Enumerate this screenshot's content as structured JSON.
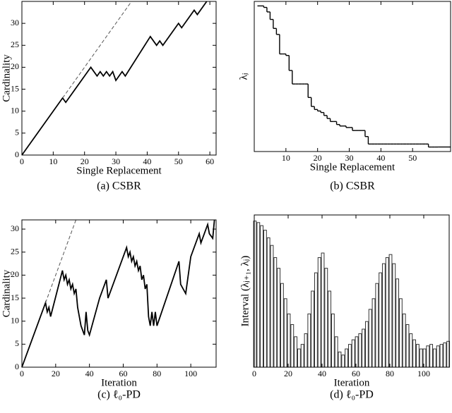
{
  "chart_data": [
    {
      "type": "line",
      "caption": "(a) CSBR",
      "xlabel": "Single Replacement",
      "ylabel": "Cardinality",
      "xlim": [
        0,
        62
      ],
      "xticks": [
        0,
        10,
        20,
        30,
        40,
        50,
        60
      ],
      "ylim": [
        0,
        35
      ],
      "yticks": [
        0,
        5,
        10,
        15,
        20,
        25,
        30
      ],
      "series": [
        {
          "color": "#000000",
          "dash": false,
          "x": [
            0,
            13,
            14,
            22,
            24,
            25,
            26,
            27,
            28,
            29,
            30,
            32,
            33,
            41,
            43,
            44,
            45,
            50,
            51,
            55,
            56,
            59
          ],
          "values": [
            0,
            13,
            12,
            20,
            18,
            19,
            18,
            19,
            18,
            19,
            17,
            19,
            18,
            27,
            25,
            26,
            25,
            30,
            29,
            33,
            32,
            35
          ]
        },
        {
          "color": "#555555",
          "dash": true,
          "x": [
            13,
            35
          ],
          "values": [
            13,
            35
          ]
        }
      ]
    },
    {
      "type": "step",
      "caption": "(b) CSBR",
      "xlabel": "Single Replacement",
      "ylabel": "λⱼ",
      "xlim": [
        0,
        62
      ],
      "xticks": [
        10,
        20,
        30,
        40,
        50
      ],
      "ylim": [
        0,
        100
      ],
      "color": "#000000",
      "x": [
        1,
        2,
        3,
        4,
        5,
        6,
        7,
        8,
        9,
        10,
        11,
        12,
        13,
        14,
        15,
        16,
        17,
        18,
        19,
        20,
        21,
        22,
        23,
        24,
        25,
        26,
        27,
        28,
        29,
        30,
        31,
        32,
        33,
        34,
        35,
        36,
        37,
        38,
        39,
        40,
        41,
        42,
        43,
        44,
        45,
        46,
        47,
        48,
        49,
        50,
        51,
        52,
        53,
        54,
        55,
        56,
        57,
        58
      ],
      "values": [
        97,
        97,
        96,
        93,
        88,
        82,
        78,
        65,
        65,
        64,
        54,
        45,
        45,
        45,
        45,
        45,
        36,
        30,
        28,
        27,
        26,
        24,
        22,
        20,
        20,
        18,
        17,
        17,
        16,
        16,
        14,
        14,
        14,
        14,
        10,
        5,
        5,
        5,
        5,
        5,
        5,
        5,
        5,
        5,
        5,
        5,
        5,
        5,
        5,
        5,
        5,
        5,
        5,
        5,
        3,
        3,
        3,
        3
      ]
    },
    {
      "type": "line",
      "caption": "(c) ℓ₀-PD",
      "xlabel": "Iteration",
      "ylabel": "Cardinality",
      "xlim": [
        0,
        115
      ],
      "xticks": [
        0,
        20,
        40,
        60,
        80,
        100
      ],
      "ylim": [
        0,
        32
      ],
      "yticks": [
        0,
        5,
        10,
        15,
        20,
        25,
        30
      ],
      "series": [
        {
          "color": "#000000",
          "dash": false,
          "x": [
            0,
            14,
            15,
            16,
            17,
            24,
            25,
            26,
            27,
            28,
            29,
            30,
            31,
            32,
            33,
            35,
            37,
            38,
            39,
            40,
            46,
            50,
            51,
            62,
            63,
            64,
            65,
            66,
            67,
            68,
            69,
            70,
            71,
            72,
            73,
            74,
            75,
            76,
            77,
            78,
            79,
            80,
            93,
            94,
            97,
            100,
            105,
            106,
            110,
            111,
            113,
            114
          ],
          "values": [
            0,
            14,
            12,
            13,
            11,
            21,
            19,
            20,
            18,
            19,
            17,
            18,
            16,
            17,
            13,
            9,
            7,
            12,
            8,
            7,
            15,
            19,
            15,
            26,
            24,
            25,
            23,
            24,
            22,
            23,
            21,
            22,
            19,
            20,
            17,
            18,
            11,
            9,
            12,
            9,
            12,
            9,
            23,
            18,
            16,
            24,
            29,
            27,
            31,
            29,
            28,
            32
          ]
        },
        {
          "color": "#555555",
          "dash": true,
          "x": [
            14,
            32
          ],
          "values": [
            14,
            32
          ]
        }
      ]
    },
    {
      "type": "bar",
      "caption": "(d) ℓ₀-PD",
      "xlabel": "Iteration",
      "ylabel": "Interval (λⱼ₊₁, λⱼ)",
      "xlim": [
        0,
        115
      ],
      "xticks": [
        0,
        20,
        40,
        60,
        80,
        100
      ],
      "ylim": [
        0,
        100
      ],
      "color": "#333333",
      "x": [
        0,
        2,
        4,
        6,
        8,
        10,
        12,
        14,
        16,
        18,
        20,
        22,
        24,
        26,
        28,
        30,
        32,
        34,
        36,
        38,
        40,
        42,
        44,
        46,
        48,
        50,
        52,
        54,
        56,
        58,
        60,
        62,
        64,
        66,
        68,
        70,
        72,
        74,
        76,
        78,
        80,
        82,
        84,
        86,
        88,
        90,
        92,
        94,
        96,
        98,
        100,
        102,
        104,
        106,
        108,
        110,
        112,
        114
      ],
      "values": [
        96,
        95,
        93,
        90,
        85,
        80,
        72,
        65,
        55,
        45,
        35,
        28,
        20,
        12,
        15,
        22,
        35,
        50,
        62,
        72,
        75,
        65,
        50,
        35,
        20,
        10,
        8,
        12,
        15,
        18,
        20,
        22,
        25,
        30,
        38,
        45,
        55,
        62,
        68,
        72,
        74,
        68,
        58,
        45,
        35,
        28,
        22,
        18,
        15,
        12,
        12,
        14,
        15,
        12,
        14,
        15,
        16,
        17
      ]
    }
  ]
}
